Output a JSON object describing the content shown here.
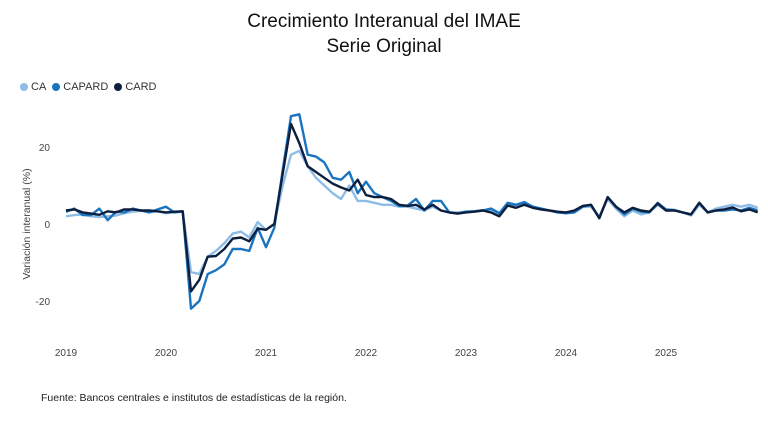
{
  "chart_data": {
    "type": "line",
    "title": "Crecimiento Interanual del IMAE",
    "subtitle": "Serie Original",
    "xlabel": "",
    "ylabel": "Variación interanual (%)",
    "x_start": "2019-01",
    "x_end": "2025-10",
    "frequency": "monthly",
    "xticks": [
      "2019",
      "2020",
      "2021",
      "2022",
      "2023",
      "2024",
      "2025"
    ],
    "yticks": [
      20,
      0,
      -20
    ],
    "ylim": [
      -30,
      32
    ],
    "grid": false,
    "legend": "top-left",
    "series": [
      {
        "name": "CA",
        "color": "#8DBCE6",
        "values": [
          2,
          2.3,
          2.5,
          2,
          1.8,
          2,
          2.2,
          2.8,
          3.2,
          3.5,
          3,
          3.3,
          2.8,
          3,
          3.2,
          -12.5,
          -13,
          -8.5,
          -7,
          -5,
          -2.5,
          -2,
          -3.5,
          0.5,
          -1.5,
          0,
          10,
          18,
          19,
          15,
          12,
          10,
          8,
          6.5,
          10,
          6,
          6,
          5.5,
          5,
          5,
          4.5,
          4.5,
          4,
          3.5,
          4.5,
          3.5,
          3,
          3,
          3.2,
          3.3,
          3.6,
          3.5,
          2.5,
          5,
          5,
          5.5,
          4.5,
          4,
          3.5,
          3,
          2.8,
          3,
          4.5,
          4.5,
          2,
          6.5,
          4,
          2,
          3.5,
          2.5,
          3,
          5,
          3.5,
          3.7,
          3,
          2.2,
          5,
          3,
          4,
          4.5,
          5,
          4.5,
          5,
          4.2
        ]
      },
      {
        "name": "CAPARD",
        "color": "#1A74BD",
        "values": [
          3.2,
          4,
          2.3,
          2.3,
          4,
          1,
          3.2,
          3,
          4,
          3.5,
          3,
          3.8,
          4.5,
          3,
          3.3,
          -22,
          -20,
          -13,
          -12,
          -10.5,
          -6.5,
          -6.5,
          -7,
          -1,
          -6,
          -1,
          14,
          28,
          28.5,
          18,
          17.5,
          16,
          12,
          11.5,
          13.5,
          8,
          11,
          8,
          7,
          6,
          4.7,
          4.8,
          6.5,
          3.5,
          6,
          6,
          3,
          2.7,
          3.2,
          3.3,
          3.5,
          4,
          2.8,
          5.5,
          5,
          5.7,
          4.5,
          4,
          3.5,
          3,
          2.8,
          3,
          4.5,
          5,
          1.5,
          7,
          4.5,
          2.5,
          4,
          3.2,
          3,
          5.5,
          3.8,
          3.6,
          3,
          2.5,
          5.5,
          3,
          3.5,
          3.5,
          3.8,
          3.5,
          4.2,
          3.5
        ]
      },
      {
        "name": "CARD",
        "color": "#0E1F3D",
        "values": [
          3.5,
          3.8,
          3,
          2.7,
          2.4,
          3.3,
          3,
          3.8,
          3.8,
          3.5,
          3.5,
          3.3,
          3,
          3.2,
          3.3,
          -17.5,
          -14.5,
          -8.5,
          -8.3,
          -6.5,
          -3.8,
          -3.5,
          -4.5,
          -1.2,
          -1.5,
          0,
          13,
          26,
          21,
          15,
          13.5,
          12,
          10.5,
          9.5,
          8.7,
          11.5,
          7.5,
          7,
          7,
          6.5,
          5,
          4.7,
          5,
          3.8,
          5,
          3.5,
          3,
          2.7,
          3,
          3.2,
          3.5,
          3,
          2,
          4.8,
          4.2,
          5,
          4.2,
          3.8,
          3.5,
          3.2,
          3,
          3.5,
          4.7,
          5,
          1.5,
          7,
          4.5,
          3,
          4.2,
          3.5,
          3.2,
          5.3,
          3.5,
          3.5,
          3,
          2.5,
          5.5,
          3,
          3.5,
          3.8,
          4.3,
          3.3,
          3.8,
          3
        ]
      }
    ]
  },
  "source": "Fuente: Bancos centrales e institutos de estadísticas de la región."
}
